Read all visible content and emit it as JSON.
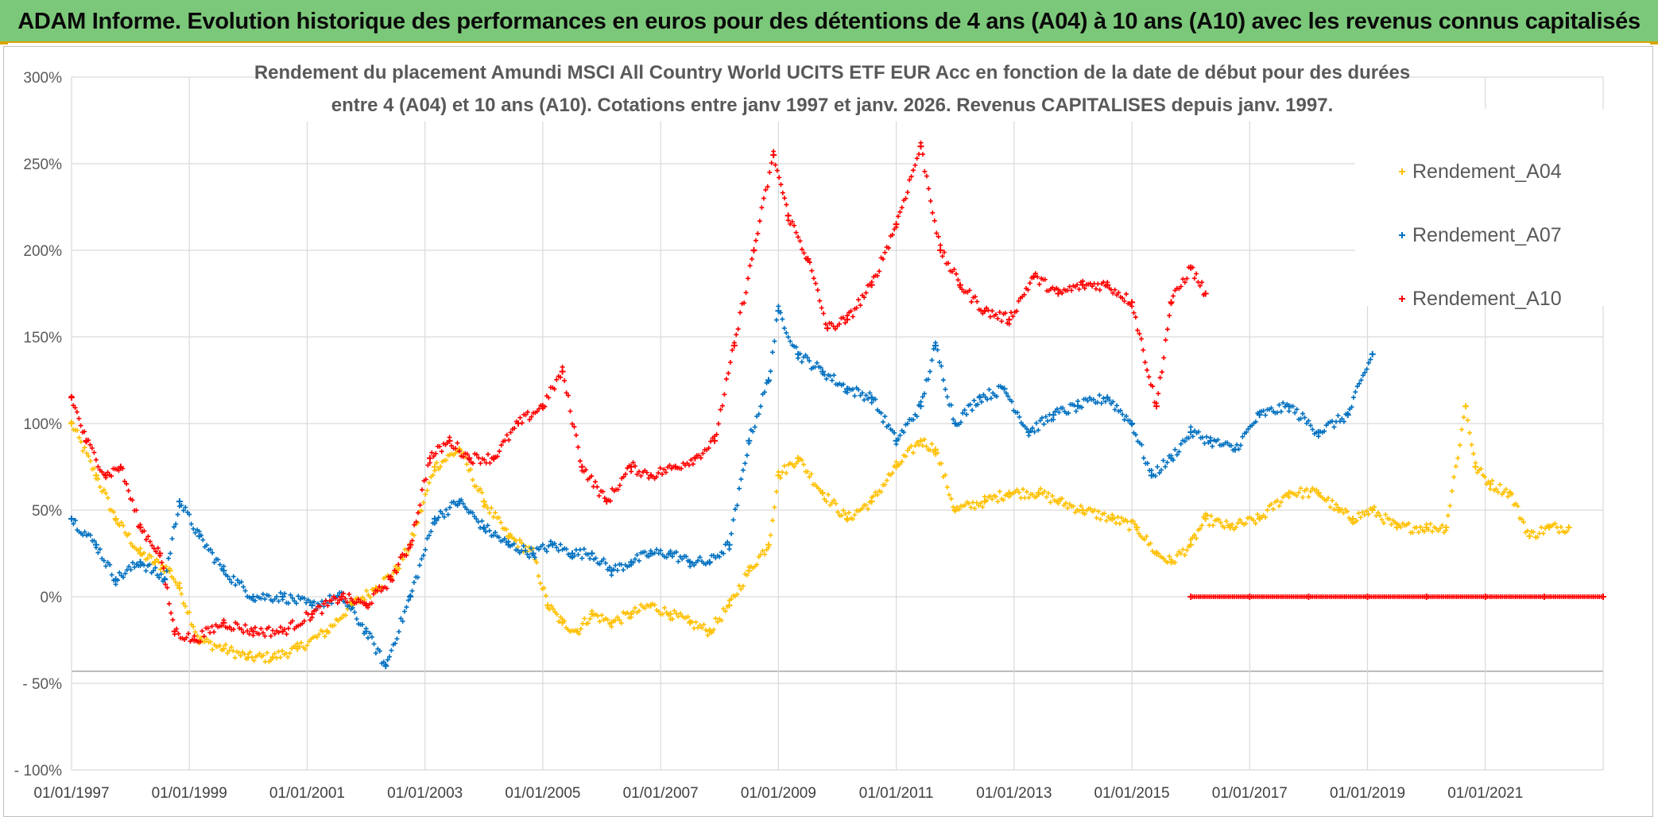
{
  "header": {
    "title": "ADAM Informe. Evolution historique des performances en euros pour des détentions de 4 ans (A04) à 10 ans (A10) avec les revenus connus capitalisés"
  },
  "chart_data": {
    "type": "scatter",
    "title_line1": "Rendement du placement Amundi MSCI All Country World UCITS ETF EUR Acc en fonction de la date de début pour des durées",
    "title_line2": "entre 4 (A04) et 10 ans (A10). Cotations entre janv 1997 et janv. 2026. Revenus CAPITALISES depuis janv. 1997.",
    "xlabel": "",
    "ylabel": "",
    "xlim": [
      "1997-01-01",
      "2023-01-01"
    ],
    "ylim": [
      -100,
      300
    ],
    "x_tick_labels": [
      "01/01/1997",
      "01/01/1999",
      "01/01/2001",
      "01/01/2003",
      "01/01/2005",
      "01/01/2007",
      "01/01/2009",
      "01/01/2011",
      "01/01/2013",
      "01/01/2015",
      "01/01/2017",
      "01/01/2019",
      "01/01/2021"
    ],
    "y_tick_labels": [
      "300%",
      "250%",
      "200%",
      "150%",
      "100%",
      "50%",
      "0%",
      "- 50%",
      "- 100%"
    ],
    "grid": true,
    "legend_position": "top-right",
    "series": [
      {
        "name": "Rendement_A04",
        "color": "#ffc000",
        "x": [
          "1997-01",
          "1997-06",
          "1997-10",
          "1998-03",
          "1998-06",
          "1998-09",
          "1998-11",
          "1999-03",
          "1999-08",
          "2000-01",
          "2000-06",
          "2000-11",
          "2001-05",
          "2001-10",
          "2002-03",
          "2002-07",
          "2002-10",
          "2003-03",
          "2003-08",
          "2004-01",
          "2004-06",
          "2004-11",
          "2005-02",
          "2005-05",
          "2005-08",
          "2005-11",
          "2006-03",
          "2006-07",
          "2006-11",
          "2007-03",
          "2007-07",
          "2007-11",
          "2008-03",
          "2008-07",
          "2008-11",
          "2009-01",
          "2009-05",
          "2009-10",
          "2010-03",
          "2010-08",
          "2011-01",
          "2011-06",
          "2011-09",
          "2012-01",
          "2012-07",
          "2012-12",
          "2013-06",
          "2013-10",
          "2014-03",
          "2014-09",
          "2015-02",
          "2015-06",
          "2015-09",
          "2016-01",
          "2016-04",
          "2016-09",
          "2017-03",
          "2017-09",
          "2018-03",
          "2018-07",
          "2018-10",
          "2019-02",
          "2019-07",
          "2020-01",
          "2020-05",
          "2020-09",
          "2020-11",
          "2021-02",
          "2021-06",
          "2021-10",
          "2022-02",
          "2022-06"
        ],
        "y": [
          100,
          70,
          45,
          25,
          20,
          15,
          5,
          -25,
          -30,
          -35,
          -35,
          -30,
          -20,
          -5,
          5,
          15,
          30,
          75,
          85,
          55,
          35,
          25,
          -5,
          -15,
          -20,
          -10,
          -15,
          -10,
          -5,
          -10,
          -15,
          -20,
          -5,
          15,
          30,
          70,
          80,
          60,
          45,
          55,
          75,
          90,
          85,
          50,
          55,
          60,
          60,
          55,
          50,
          45,
          40,
          25,
          20,
          30,
          45,
          40,
          45,
          60,
          60,
          50,
          45,
          50,
          40,
          40,
          40,
          110,
          75,
          65,
          60,
          35,
          40,
          40
        ]
      },
      {
        "name": "Rendement_A07",
        "color": "#0070c0",
        "x": [
          "1997-01",
          "1997-06",
          "1997-10",
          "1998-03",
          "1998-08",
          "1998-11",
          "1999-03",
          "1999-08",
          "2000-02",
          "2000-08",
          "2001-02",
          "2001-08",
          "2002-01",
          "2002-05",
          "2002-10",
          "2003-03",
          "2003-08",
          "2004-01",
          "2004-06",
          "2004-11",
          "2005-03",
          "2005-07",
          "2005-11",
          "2006-03",
          "2006-07",
          "2006-11",
          "2007-03",
          "2007-07",
          "2007-11",
          "2008-03",
          "2008-07",
          "2008-11",
          "2009-01",
          "2009-05",
          "2009-10",
          "2010-03",
          "2010-08",
          "2011-01",
          "2011-06",
          "2011-09",
          "2012-01",
          "2012-06",
          "2012-11",
          "2013-04",
          "2013-09",
          "2014-02",
          "2014-08",
          "2015-01",
          "2015-05",
          "2015-09",
          "2016-01",
          "2016-05",
          "2016-10",
          "2017-03",
          "2017-09",
          "2018-03",
          "2018-09",
          "2019-02"
        ],
        "y": [
          45,
          30,
          10,
          20,
          10,
          55,
          35,
          15,
          0,
          0,
          -5,
          0,
          -20,
          -40,
          0,
          45,
          55,
          40,
          30,
          25,
          30,
          25,
          25,
          15,
          20,
          25,
          25,
          20,
          20,
          30,
          90,
          125,
          165,
          140,
          130,
          120,
          115,
          90,
          110,
          145,
          100,
          115,
          120,
          95,
          105,
          110,
          115,
          100,
          70,
          80,
          95,
          90,
          85,
          105,
          110,
          95,
          105,
          140
        ]
      },
      {
        "name": "Rendement_A10",
        "color": "#ff0000",
        "x": [
          "1997-01",
          "1997-04",
          "1997-08",
          "1997-11",
          "1998-03",
          "1998-07",
          "1998-10",
          "1999-02",
          "1999-08",
          "2000-02",
          "2000-08",
          "2001-02",
          "2001-08",
          "2002-01",
          "2002-06",
          "2002-10",
          "2003-02",
          "2003-06",
          "2003-10",
          "2004-03",
          "2004-08",
          "2005-01",
          "2005-05",
          "2005-09",
          "2006-02",
          "2006-07",
          "2006-11",
          "2007-04",
          "2007-08",
          "2007-12",
          "2008-04",
          "2008-08",
          "2008-12",
          "2009-03",
          "2009-07",
          "2009-11",
          "2010-03",
          "2010-08",
          "2011-01",
          "2011-06",
          "2011-10",
          "2012-02",
          "2012-07",
          "2012-12",
          "2013-05",
          "2013-10",
          "2014-03",
          "2014-08",
          "2015-01",
          "2015-06",
          "2015-09",
          "2016-01",
          "2016-04"
        ],
        "y": [
          115,
          90,
          70,
          75,
          40,
          25,
          -20,
          -25,
          -15,
          -20,
          -20,
          -10,
          0,
          -5,
          10,
          30,
          80,
          90,
          80,
          80,
          100,
          110,
          130,
          75,
          55,
          75,
          70,
          75,
          80,
          90,
          145,
          200,
          255,
          220,
          195,
          155,
          160,
          180,
          215,
          260,
          200,
          180,
          165,
          160,
          185,
          175,
          180,
          180,
          170,
          110,
          170,
          190,
          175
        ]
      },
      {
        "name": "",
        "color": "#ff0000",
        "x": [
          "2016-01",
          "2017-01",
          "2018-01",
          "2019-01",
          "2020-01",
          "2021-01",
          "2022-01",
          "2023-01"
        ],
        "y": [
          0,
          0,
          0,
          0,
          0,
          0,
          0,
          0
        ]
      }
    ]
  }
}
